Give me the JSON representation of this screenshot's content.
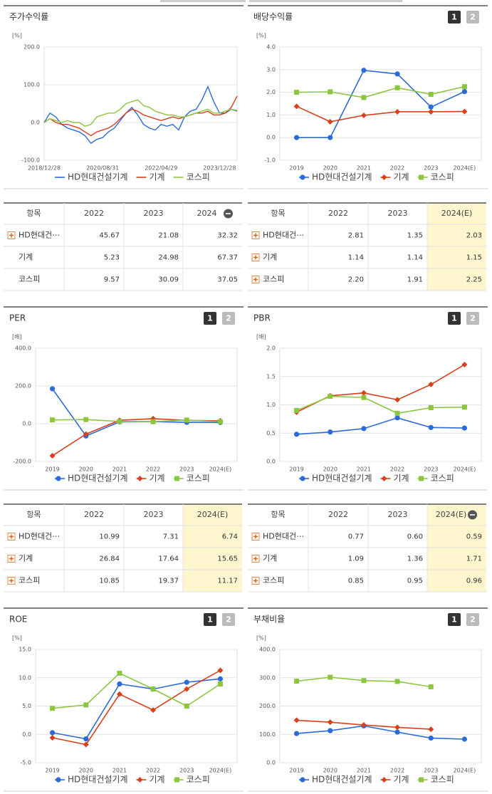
{
  "chart_data": [
    {
      "type": "line",
      "title": "주가수익률",
      "y_unit": "[%]",
      "categories": [
        "2018/12/28",
        null,
        null,
        null,
        null,
        null,
        null,
        null,
        null,
        null,
        "2020/08/31",
        null,
        null,
        null,
        null,
        null,
        null,
        null,
        null,
        null,
        "2022/04/29",
        null,
        null,
        null,
        null,
        null,
        null,
        null,
        null,
        null,
        "2023/12/28",
        null,
        null,
        null
      ],
      "series": [
        {
          "name": "HD현대건설기계",
          "color": "#2b6bd9",
          "values": [
            0,
            25,
            15,
            -5,
            -15,
            -20,
            -25,
            -35,
            -55,
            -45,
            -40,
            -25,
            -15,
            5,
            25,
            40,
            20,
            -5,
            -15,
            -20,
            -5,
            -10,
            -5,
            -20,
            15,
            30,
            35,
            60,
            95,
            55,
            25,
            25,
            35,
            30
          ]
        },
        {
          "name": "기계",
          "color": "#d8401c",
          "values": [
            0,
            10,
            0,
            -5,
            -5,
            -10,
            -15,
            -25,
            -35,
            -25,
            -20,
            -15,
            -5,
            10,
            25,
            35,
            30,
            20,
            15,
            10,
            5,
            10,
            15,
            10,
            15,
            20,
            25,
            25,
            30,
            20,
            20,
            25,
            40,
            70
          ]
        },
        {
          "name": "코스피",
          "color": "#8cc63e",
          "values": [
            0,
            10,
            5,
            0,
            5,
            0,
            0,
            -10,
            -5,
            15,
            20,
            25,
            25,
            35,
            50,
            55,
            60,
            45,
            40,
            30,
            25,
            20,
            20,
            15,
            15,
            20,
            25,
            30,
            35,
            25,
            25,
            30,
            35,
            32
          ]
        }
      ],
      "ylim": [
        -100,
        200
      ],
      "yticks": [
        {
          "value": -100,
          "label": "-100.0"
        },
        {
          "value": 0,
          "label": "0.0"
        },
        {
          "value": 100,
          "label": "100.0"
        },
        {
          "value": 200,
          "label": "200.0"
        }
      ],
      "grid": true,
      "legend": "bottom"
    },
    {
      "type": "line",
      "title": "배당수익률",
      "tabs": [
        "1",
        "2"
      ],
      "y_unit": "[%]",
      "categories": [
        "2019",
        "2020",
        "2021",
        "2022",
        "2023",
        "2024(E)"
      ],
      "series": [
        {
          "name": "HD현대건설기계",
          "color": "#2b6bd9",
          "marker": "circle",
          "values": [
            0,
            0,
            2.97,
            2.81,
            1.35,
            2.03
          ]
        },
        {
          "name": "기계",
          "color": "#d8401c",
          "marker": "diamond",
          "values": [
            1.38,
            0.7,
            0.98,
            1.14,
            1.14,
            1.15
          ]
        },
        {
          "name": "코스피",
          "color": "#8cc63e",
          "marker": "square",
          "values": [
            2.0,
            2.02,
            1.77,
            2.2,
            1.91,
            2.25
          ]
        }
      ],
      "ylim": [
        -1,
        4
      ],
      "yticks": [
        {
          "value": -1,
          "label": "-1.0"
        },
        {
          "value": 0,
          "label": "0.0"
        },
        {
          "value": 1,
          "label": "1.0"
        },
        {
          "value": 2,
          "label": "2.0"
        },
        {
          "value": 3,
          "label": "3.0"
        },
        {
          "value": 4,
          "label": "4.0"
        }
      ],
      "grid": true,
      "legend": "bottom"
    },
    {
      "type": "line",
      "title": "PER",
      "tabs": [
        "1",
        "2"
      ],
      "y_unit": "[배]",
      "categories": [
        "2019",
        "2020",
        "2021",
        "2022",
        "2023",
        "2024(E)"
      ],
      "series": [
        {
          "name": "HD현대건설기계",
          "color": "#2b6bd9",
          "marker": "circle",
          "values": [
            185,
            -65,
            10,
            10.99,
            7.31,
            6.74
          ]
        },
        {
          "name": "기계",
          "color": "#d8401c",
          "marker": "diamond",
          "values": [
            -170,
            -55,
            18,
            26.84,
            17.64,
            15.65
          ]
        },
        {
          "name": "코스피",
          "color": "#8cc63e",
          "marker": "square",
          "values": [
            20,
            22,
            12,
            10.85,
            19.37,
            11.17
          ]
        }
      ],
      "ylim": [
        -200,
        400
      ],
      "yticks": [
        {
          "value": -200,
          "label": "-200.0"
        },
        {
          "value": 0,
          "label": "0.0"
        },
        {
          "value": 200,
          "label": "200.0"
        },
        {
          "value": 400,
          "label": "400.0"
        }
      ],
      "grid": true,
      "legend": "bottom"
    },
    {
      "type": "line",
      "title": "PBR",
      "tabs": [
        "1",
        "2"
      ],
      "y_unit": "[배]",
      "categories": [
        "2019",
        "2020",
        "2021",
        "2022",
        "2023",
        "2024(E)"
      ],
      "series": [
        {
          "name": "HD현대건설기계",
          "color": "#2b6bd9",
          "marker": "circle",
          "values": [
            0.48,
            0.52,
            0.58,
            0.77,
            0.6,
            0.59
          ]
        },
        {
          "name": "기계",
          "color": "#d8401c",
          "marker": "diamond",
          "values": [
            0.87,
            1.16,
            1.21,
            1.09,
            1.36,
            1.71
          ]
        },
        {
          "name": "코스피",
          "color": "#8cc63e",
          "marker": "square",
          "values": [
            0.9,
            1.15,
            1.13,
            0.85,
            0.95,
            0.96
          ]
        }
      ],
      "ylim": [
        0,
        2
      ],
      "yticks": [
        {
          "value": 0,
          "label": "0.0"
        },
        {
          "value": 0.5,
          "label": "0.5"
        },
        {
          "value": 1,
          "label": "1.0"
        },
        {
          "value": 1.5,
          "label": "1.5"
        },
        {
          "value": 2,
          "label": "2.0"
        }
      ],
      "grid": true,
      "legend": "bottom"
    },
    {
      "type": "line",
      "title": "ROE",
      "tabs": [
        "1",
        "2"
      ],
      "y_unit": "[%]",
      "categories": [
        "2019",
        "2020",
        "2021",
        "2022",
        "2023",
        "2024(E)"
      ],
      "series": [
        {
          "name": "HD현대건설기계",
          "color": "#2b6bd9",
          "marker": "circle",
          "values": [
            0.3,
            -0.8,
            8.9,
            8.0,
            9.2,
            9.8
          ]
        },
        {
          "name": "기계",
          "color": "#d8401c",
          "marker": "diamond",
          "values": [
            -0.6,
            -1.8,
            7.1,
            4.3,
            8.0,
            11.3
          ]
        },
        {
          "name": "코스피",
          "color": "#8cc63e",
          "marker": "square",
          "values": [
            4.6,
            5.2,
            10.8,
            8.0,
            5.0,
            8.9
          ]
        }
      ],
      "ylim": [
        -5,
        15
      ],
      "yticks": [
        {
          "value": -5,
          "label": "-5.0"
        },
        {
          "value": 0,
          "label": "0.0"
        },
        {
          "value": 5,
          "label": "5.0"
        },
        {
          "value": 10,
          "label": "10.0"
        },
        {
          "value": 15,
          "label": "15.0"
        }
      ],
      "grid": true,
      "legend": "bottom"
    },
    {
      "type": "line",
      "title": "부채비율",
      "tabs": [
        "1",
        "2"
      ],
      "y_unit": "[%]",
      "categories": [
        "2019",
        "2020",
        "2021",
        "2022",
        "2023",
        "2024(E)"
      ],
      "series": [
        {
          "name": "HD현대건설기계",
          "color": "#2b6bd9",
          "marker": "circle",
          "values": [
            103,
            113,
            130,
            108,
            87,
            83
          ]
        },
        {
          "name": "기계",
          "color": "#d8401c",
          "marker": "diamond",
          "values": [
            150,
            143,
            133,
            125,
            118,
            null
          ]
        },
        {
          "name": "코스피",
          "color": "#8cc63e",
          "marker": "square",
          "values": [
            288,
            302,
            290,
            287,
            268,
            null
          ]
        }
      ],
      "ylim": [
        0,
        400
      ],
      "yticks": [
        {
          "value": 0,
          "label": "0.0"
        },
        {
          "value": 100,
          "label": "100.0"
        },
        {
          "value": 200,
          "label": "200.0"
        },
        {
          "value": 300,
          "label": "300.0"
        },
        {
          "value": 400,
          "label": "400.0"
        }
      ],
      "grid": true,
      "legend": "bottom"
    }
  ],
  "tables": [
    {
      "header": [
        "항목",
        "2022",
        "2023",
        "2024"
      ],
      "rows": [
        [
          "HD현대건⋯",
          "45.67",
          "21.08",
          "32.32"
        ],
        [
          "기계",
          "5.23",
          "24.98",
          "67.37"
        ],
        [
          "코스피",
          "9.57",
          "30.09",
          "37.05"
        ]
      ]
    },
    {
      "header": [
        "항목",
        "2022",
        "2023",
        "2024(E)"
      ],
      "rows": [
        [
          "HD현대건⋯",
          "2.81",
          "1.35",
          "2.03"
        ],
        [
          "기계",
          "1.14",
          "1.14",
          "1.15"
        ],
        [
          "코스피",
          "2.20",
          "1.91",
          "2.25"
        ]
      ]
    },
    {
      "header": [
        "항목",
        "2022",
        "2023",
        "2024(E)"
      ],
      "rows": [
        [
          "HD현대건⋯",
          "10.99",
          "7.31",
          "6.74"
        ],
        [
          "기계",
          "26.84",
          "17.64",
          "15.65"
        ],
        [
          "코스피",
          "10.85",
          "19.37",
          "11.17"
        ]
      ]
    },
    {
      "header": [
        "항목",
        "2022",
        "2023",
        "2024(E)"
      ],
      "rows": [
        [
          "HD현대건⋯",
          "0.77",
          "0.60",
          "0.59"
        ],
        [
          "기계",
          "1.09",
          "1.36",
          "1.71"
        ],
        [
          "코스피",
          "0.85",
          "0.95",
          "0.96"
        ]
      ]
    }
  ]
}
